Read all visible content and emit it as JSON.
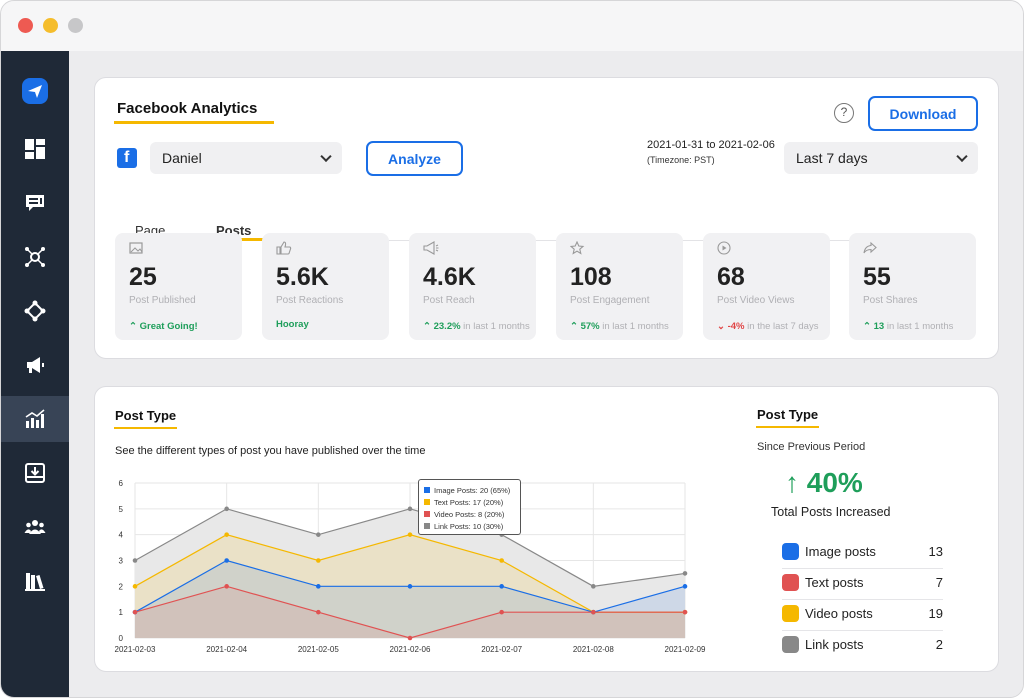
{
  "window": {
    "controls": [
      "close",
      "minimize",
      "maximize"
    ]
  },
  "sidebar": {
    "logo": "paper-plane-icon",
    "items": [
      {
        "icon": "dashboard-icon"
      },
      {
        "icon": "chat-icon"
      },
      {
        "icon": "network-icon"
      },
      {
        "icon": "nodes-icon"
      },
      {
        "icon": "megaphone-icon"
      },
      {
        "icon": "analytics-icon",
        "active": true
      },
      {
        "icon": "inbox-download-icon"
      },
      {
        "icon": "team-icon"
      },
      {
        "icon": "library-icon"
      }
    ]
  },
  "analytics": {
    "title": "Facebook Analytics",
    "help_icon": "?",
    "download_label": "Download",
    "account_select": "Daniel",
    "analyze_label": "Analyze",
    "date_range": "2021-01-31 to 2021-02-06",
    "timezone": "(Timezone: PST)",
    "period_select": "Last 7 days",
    "tabs": [
      {
        "label": "Page",
        "active": false
      },
      {
        "label": "Posts",
        "active": true
      }
    ],
    "stats": [
      {
        "icon": "image-icon",
        "value": "25",
        "label": "Post Published",
        "trend_value": "Great Going!",
        "trend_text": "",
        "direction": "up"
      },
      {
        "icon": "thumbs-up-icon",
        "value": "5.6K",
        "label": "Post Reactions",
        "trend_value": "Hooray",
        "trend_text": "",
        "direction": "none"
      },
      {
        "icon": "megaphone-icon",
        "value": "4.6K",
        "label": "Post Reach",
        "trend_value": "23.2%",
        "trend_text": " in last 1 months",
        "direction": "up"
      },
      {
        "icon": "star-icon",
        "value": "108",
        "label": "Post Engagement",
        "trend_value": "57%",
        "trend_text": " in last 1 months",
        "direction": "up"
      },
      {
        "icon": "play-icon",
        "value": "68",
        "label": "Post Video Views",
        "trend_value": "-4%",
        "trend_text": " in the last 7 days",
        "direction": "down"
      },
      {
        "icon": "share-icon",
        "value": "55",
        "label": "Post Shares",
        "trend_value": "13",
        "trend_text": " in last 1 months",
        "direction": "up"
      }
    ]
  },
  "post_type": {
    "title": "Post Type",
    "description": "See the different types of post you have published over the time",
    "tooltip": [
      "Image Posts: 20 (65%)",
      "Text Posts: 17 (20%)",
      "Video Posts: 8 (20%)",
      "Link Posts: 10 (30%)"
    ]
  },
  "summary": {
    "title": "Post Type",
    "subtitle": "Since Previous Period",
    "percent": "40%",
    "percent_label": "Total Posts Increased",
    "legend": [
      {
        "name": "Image posts",
        "count": "13",
        "color": "#1a6ee6"
      },
      {
        "name": "Text posts",
        "count": "7",
        "color": "#e05252"
      },
      {
        "name": "Video posts",
        "count": "19",
        "color": "#f5b800"
      },
      {
        "name": "Link posts",
        "count": "2",
        "color": "#888888"
      }
    ]
  },
  "chart_data": {
    "type": "area",
    "title": "Post Type",
    "x": [
      "2021-02-03",
      "2021-02-04",
      "2021-02-05",
      "2021-02-06",
      "2021-02-07",
      "2021-02-08",
      "2021-02-09"
    ],
    "ylim": [
      0,
      6
    ],
    "yticks": [
      0,
      1,
      2,
      3,
      4,
      5,
      6
    ],
    "grid": true,
    "series": [
      {
        "color": "#888888",
        "values": [
          3,
          5,
          4,
          5,
          4,
          2,
          2.5
        ]
      },
      {
        "color": "#f5b800",
        "values": [
          2,
          4,
          3,
          4,
          3,
          1,
          1
        ]
      },
      {
        "color": "#1a6ee6",
        "values": [
          1,
          3,
          2,
          2,
          2,
          1,
          2
        ]
      },
      {
        "color": "#e05252",
        "values": [
          1,
          2,
          1,
          0,
          1,
          1,
          1
        ]
      }
    ]
  }
}
